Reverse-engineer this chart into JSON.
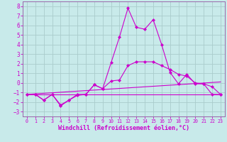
{
  "xlabel": "Windchill (Refroidissement éolien,°C)",
  "background_color": "#c8eaea",
  "grid_color": "#aacccc",
  "line_color": "#cc00cc",
  "spine_color": "#9966aa",
  "xlim": [
    -0.5,
    23.5
  ],
  "ylim": [
    -3.5,
    8.5
  ],
  "yticks": [
    -3,
    -2,
    -1,
    0,
    1,
    2,
    3,
    4,
    5,
    6,
    7,
    8
  ],
  "xticks": [
    0,
    1,
    2,
    3,
    4,
    5,
    6,
    7,
    8,
    9,
    10,
    11,
    12,
    13,
    14,
    15,
    16,
    17,
    18,
    19,
    20,
    21,
    22,
    23
  ],
  "series": [
    {
      "x": [
        0,
        1,
        2,
        3,
        4,
        5,
        6,
        7,
        8,
        9,
        10,
        11,
        12,
        13,
        14,
        15,
        16,
        17,
        18,
        19,
        20,
        21,
        22,
        23
      ],
      "y": [
        -1.2,
        -1.2,
        -1.8,
        -1.2,
        -2.4,
        -1.8,
        -1.2,
        -1.2,
        -0.2,
        -0.6,
        2.1,
        4.8,
        7.8,
        5.8,
        5.6,
        6.6,
        4.0,
        1.1,
        -0.1,
        0.9,
        -0.1,
        -0.1,
        -1.2,
        -1.2
      ],
      "marker": true
    },
    {
      "x": [
        0,
        1,
        2,
        3,
        4,
        5,
        6,
        7,
        8,
        9,
        10,
        11,
        12,
        13,
        14,
        15,
        16,
        17,
        18,
        19,
        20,
        21,
        22,
        23
      ],
      "y": [
        -1.2,
        -1.2,
        -1.8,
        -1.2,
        -2.3,
        -1.8,
        -1.3,
        -1.2,
        -0.2,
        -0.6,
        0.2,
        0.3,
        1.8,
        2.2,
        2.2,
        2.2,
        1.8,
        1.4,
        0.9,
        0.7,
        0.0,
        -0.1,
        -0.4,
        -1.2
      ],
      "marker": true
    },
    {
      "x": [
        0,
        23
      ],
      "y": [
        -1.2,
        -1.2
      ],
      "marker": false
    },
    {
      "x": [
        0,
        23
      ],
      "y": [
        -1.2,
        0.1
      ],
      "marker": false
    }
  ],
  "xlabel_fontsize": 6,
  "tick_fontsize": 5.5,
  "tick_fontsize_x": 4.8,
  "linewidth": 0.8,
  "markersize": 2.2
}
